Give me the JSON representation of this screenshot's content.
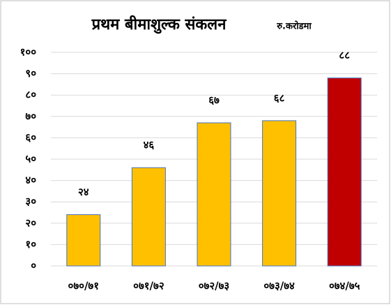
{
  "chart_data": {
    "type": "bar",
    "title": "प्रथम बीमाशुल्क संकलन",
    "subtitle": "रु.करोडमा",
    "categories": [
      "०७०/७१",
      "०७१/७२",
      "०७२/७३",
      "०७३/७४",
      "०७४/७५"
    ],
    "values": [
      24,
      46,
      67,
      68,
      88
    ],
    "value_labels": [
      "२४",
      "४६",
      "६७",
      "६८",
      "८८"
    ],
    "colors": [
      "#FFC000",
      "#FFC000",
      "#FFC000",
      "#FFC000",
      "#C00000"
    ],
    "ylim": [
      0,
      100
    ],
    "yticks": [
      {
        "value": 0,
        "label": "०"
      },
      {
        "value": 10,
        "label": "१०"
      },
      {
        "value": 20,
        "label": "२०"
      },
      {
        "value": 30,
        "label": "३०"
      },
      {
        "value": 40,
        "label": "४०"
      },
      {
        "value": 50,
        "label": "५०"
      },
      {
        "value": 60,
        "label": "६०"
      },
      {
        "value": 70,
        "label": "७०"
      },
      {
        "value": 80,
        "label": "८०"
      },
      {
        "value": 90,
        "label": "९०"
      },
      {
        "value": 100,
        "label": "१००"
      }
    ],
    "grid": true
  }
}
